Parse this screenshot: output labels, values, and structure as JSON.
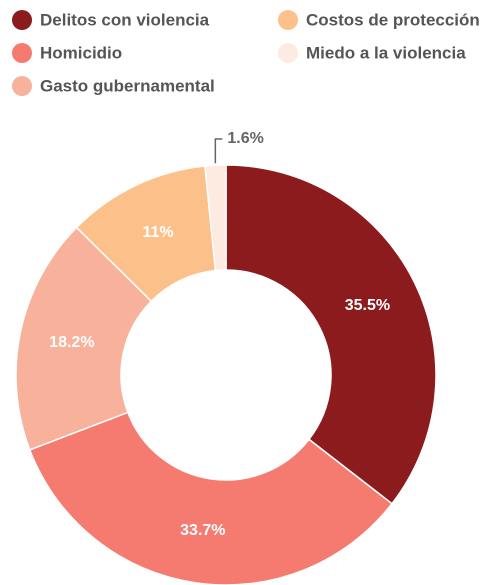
{
  "chart_data": {
    "type": "donut",
    "categories": [
      "Delitos con violencia",
      "Homicidio",
      "Gasto gubernamental",
      "Costos de protección",
      "Miedo a la violencia"
    ],
    "values": [
      35.5,
      33.7,
      18.2,
      11,
      1.6
    ],
    "value_labels": [
      "35.5%",
      "33.7%",
      "18.2%",
      "11%",
      "1.6%"
    ],
    "colors": [
      "#8c1b1d",
      "#f57b70",
      "#f8b19a",
      "#fcc08a",
      "#fdeae0"
    ],
    "legend": "top"
  }
}
